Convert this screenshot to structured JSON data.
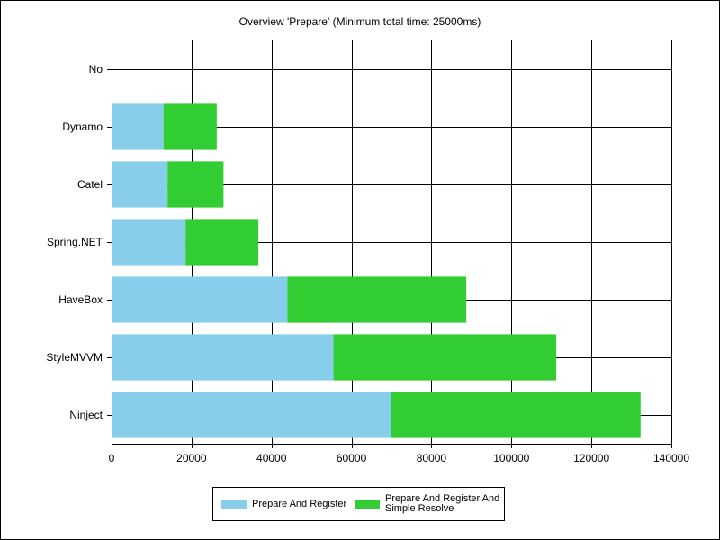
{
  "chart_data": {
    "type": "bar",
    "orientation": "horizontal",
    "stacked": true,
    "title": "Overview 'Prepare' (Minimum total time: 25000ms)",
    "categories": [
      "No",
      "Dynamo",
      "Catel",
      "Spring.NET",
      "HaveBox",
      "StyleMVVM",
      "Ninject"
    ],
    "series": [
      {
        "name": "Prepare And Register",
        "color": "#87ceeb",
        "values": [
          0,
          13000,
          14000,
          18500,
          44000,
          55500,
          70000
        ]
      },
      {
        "name": "Prepare And Register And Simple Resolve",
        "color": "#32cd32",
        "values": [
          0,
          13300,
          14000,
          18200,
          44700,
          55700,
          62300
        ]
      }
    ],
    "xlim": [
      0,
      140000
    ],
    "xticks": [
      0,
      20000,
      40000,
      60000,
      80000,
      100000,
      120000,
      140000
    ],
    "grid": true,
    "legend_position": "bottom"
  }
}
